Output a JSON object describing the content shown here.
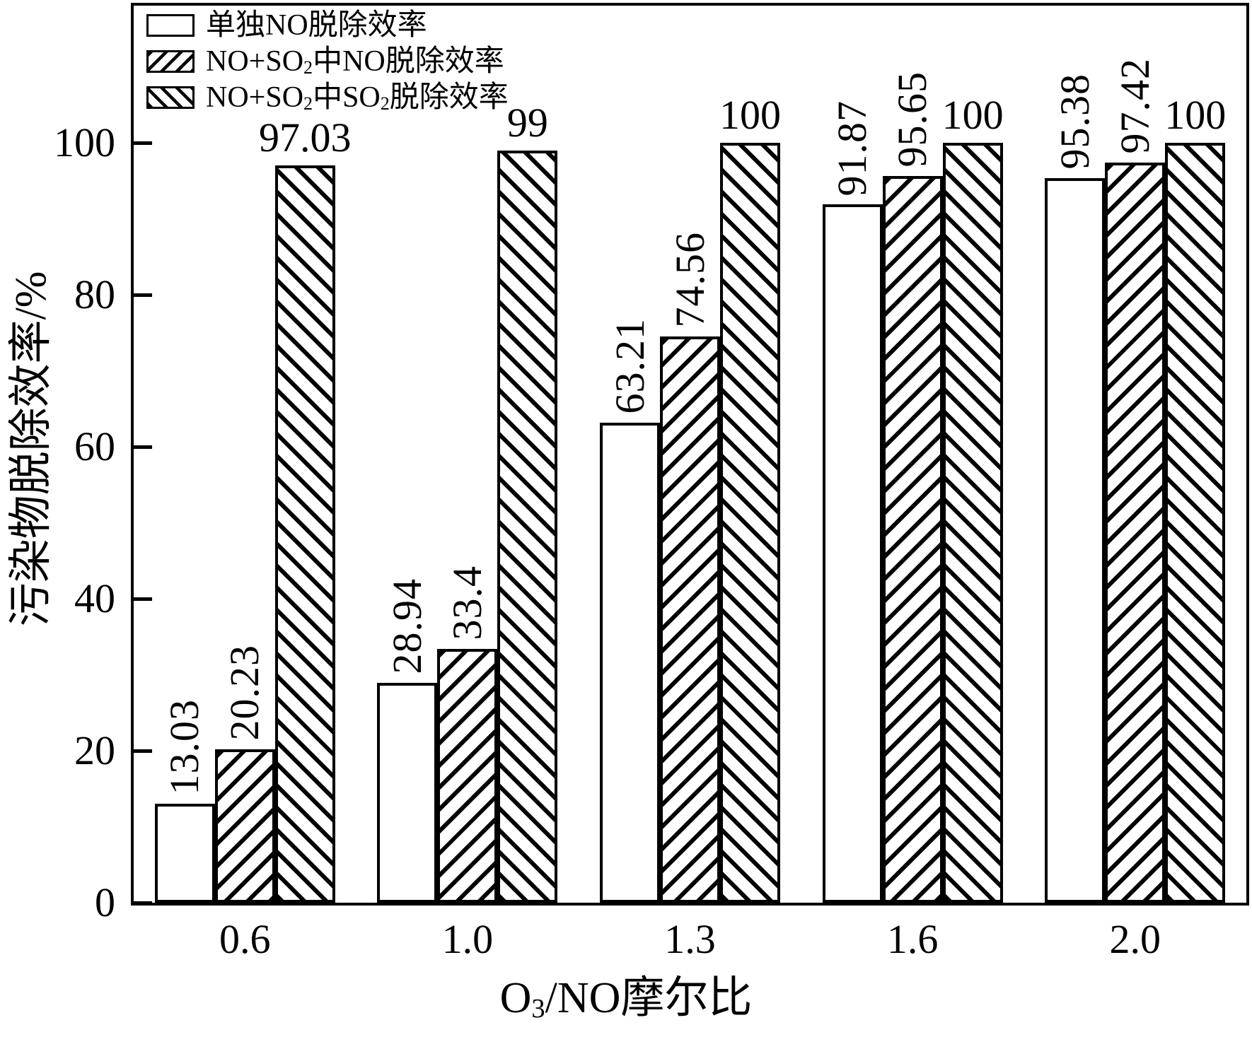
{
  "chart_data": {
    "type": "bar",
    "title": "",
    "categories": [
      "0.6",
      "1.0",
      "1.3",
      "1.6",
      "2.0"
    ],
    "series": [
      {
        "key": "no-alone",
        "name": "单独NO脱除效率",
        "name_parts": [
          {
            "text": "单独NO脱除效率"
          }
        ],
        "fill": "white",
        "hatch": "none",
        "values": [
          13.03,
          28.94,
          63.21,
          91.87,
          95.38
        ],
        "value_labels": [
          "13.03",
          "28.94",
          "63.21",
          "91.87",
          "95.38"
        ],
        "value_label_orientation": "vertical"
      },
      {
        "key": "no-in-mix",
        "name": "NO+SO₂中NO脱除效率",
        "name_parts": [
          {
            "text": "NO+SO"
          },
          {
            "text": "2",
            "sub": true
          },
          {
            "text": "中NO脱除效率"
          }
        ],
        "fill": "white",
        "hatch": "forward-diagonal",
        "values": [
          20.23,
          33.4,
          74.56,
          95.65,
          97.42
        ],
        "value_labels": [
          "20.23",
          "33.4",
          "74.56",
          "95.65",
          "97.42"
        ],
        "value_label_orientation": "vertical"
      },
      {
        "key": "so2-in-mix",
        "name": "NO+SO₂中SO₂脱除效率",
        "name_parts": [
          {
            "text": "NO+SO"
          },
          {
            "text": "2",
            "sub": true
          },
          {
            "text": "中SO"
          },
          {
            "text": "2",
            "sub": true
          },
          {
            "text": "脱除效率"
          }
        ],
        "fill": "white",
        "hatch": "backward-diagonal",
        "values": [
          97.03,
          99,
          100,
          100,
          100
        ],
        "value_labels": [
          "97.03",
          "99",
          "100",
          "100",
          "100"
        ],
        "value_label_orientation": "horizontal"
      }
    ],
    "xlabel": "O₃/NO摩尔比",
    "xlabel_parts": [
      {
        "text": "O"
      },
      {
        "text": "3",
        "sub": true
      },
      {
        "text": "/NO摩尔比"
      }
    ],
    "ylabel": "污染物脱除效率/%",
    "yticks": [
      "0",
      "20",
      "40",
      "60",
      "80",
      "100"
    ],
    "ylim": [
      0,
      100
    ],
    "grid": false,
    "legend_position": "top-left-inside",
    "colors": {
      "ink": "#000000",
      "background": "#ffffff"
    }
  }
}
